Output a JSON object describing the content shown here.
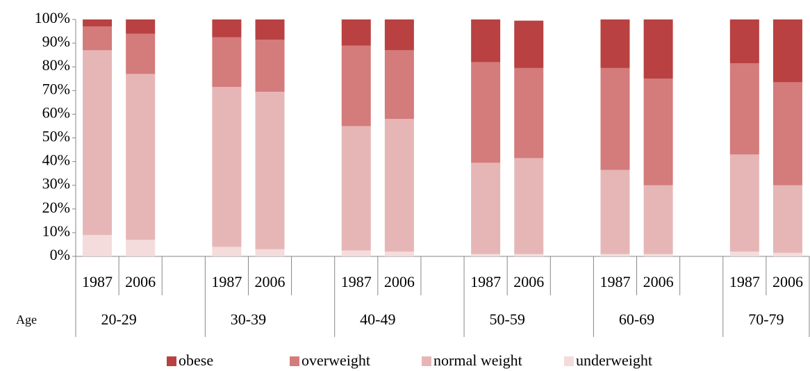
{
  "chart_data": {
    "type": "stacked_bar",
    "categories": [
      "1987",
      "2006",
      null,
      "1987",
      "2006",
      null,
      "1987",
      "2006",
      null,
      "1987",
      "2006",
      null,
      "1987",
      "2006",
      null,
      "1987",
      "2006"
    ],
    "groups": [
      "20-29",
      "30-39",
      "40-49",
      "50-59",
      "60-69",
      "70-79"
    ],
    "group_axis_label": "Age",
    "series": [
      {
        "name": "obese",
        "color": "#b94141",
        "values": [
          3,
          6,
          null,
          7.5,
          8.5,
          null,
          11,
          13,
          null,
          18,
          20,
          null,
          20.5,
          25,
          null,
          18.5,
          26.5
        ]
      },
      {
        "name": "overweight",
        "color": "#d47b7b",
        "values": [
          10,
          17,
          null,
          21,
          22,
          null,
          34,
          29,
          null,
          42.5,
          38,
          null,
          43,
          45,
          null,
          38.5,
          43.5
        ]
      },
      {
        "name": "normal weight",
        "color": "#e6b6b6",
        "values": [
          78,
          70,
          null,
          67.5,
          66.5,
          null,
          52.5,
          56,
          null,
          38.5,
          40.5,
          null,
          35.5,
          29,
          null,
          41,
          28.5
        ]
      },
      {
        "name": "underweight",
        "color": "#f4dcdc",
        "values": [
          9,
          7,
          null,
          4,
          3,
          null,
          2.5,
          2,
          null,
          1,
          1,
          null,
          1,
          1,
          null,
          2,
          1.5
        ]
      }
    ],
    "ylim": [
      0,
      100
    ],
    "yticks": [
      {
        "value": 0,
        "label": "0%"
      },
      {
        "value": 10,
        "label": "10%"
      },
      {
        "value": 20,
        "label": "20%"
      },
      {
        "value": 30,
        "label": "30%"
      },
      {
        "value": 40,
        "label": "40%"
      },
      {
        "value": 50,
        "label": "50%"
      },
      {
        "value": 60,
        "label": "60%"
      },
      {
        "value": 70,
        "label": "70%"
      },
      {
        "value": 80,
        "label": "80%"
      },
      {
        "value": 90,
        "label": "90%"
      },
      {
        "value": 100,
        "label": "100%"
      }
    ],
    "grid": false,
    "legend": "bottom"
  }
}
